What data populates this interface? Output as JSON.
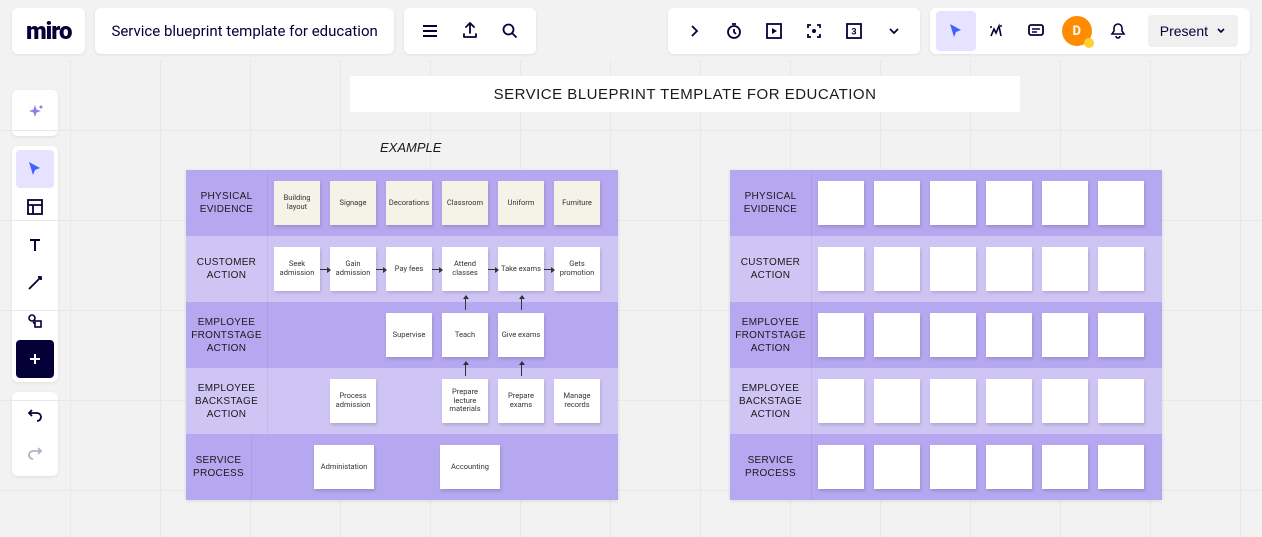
{
  "header": {
    "logo": "miro",
    "board_title": "Service blueprint template for education",
    "present_label": "Present",
    "avatar_initial": "D"
  },
  "canvas": {
    "title_banner": "SERVICE BLUEPRINT TEMPLATE FOR EDUCATION",
    "example_label": "EXAMPLE"
  },
  "blueprint": {
    "row_labels": [
      "PHYSICAL EVIDENCE",
      "CUSTOMER ACTION",
      "EMPLOYEE FRONTSTAGE ACTION",
      "EMPLOYEE BACKSTAGE ACTION",
      "SERVICE PROCESS"
    ],
    "left_rows": [
      {
        "bg": "cream",
        "cells": [
          "Building layout",
          "Signage",
          "Decorations",
          "Classroom",
          "Uniform",
          "Furniture"
        ]
      },
      {
        "bg": "white",
        "arrows_h": true,
        "cells": [
          "Seek admission",
          "Gain admission",
          "Pay fees",
          "Attend classes",
          "Take exams",
          "Gets promotion"
        ]
      },
      {
        "bg": "white",
        "arrows_v": [
          3,
          4
        ],
        "cells": [
          "",
          "",
          "Supervise",
          "Teach",
          "Give exams",
          ""
        ]
      },
      {
        "bg": "white",
        "arrows_v": [
          3,
          4
        ],
        "cells": [
          "",
          "Process admission",
          "",
          "Prepare lecture materials",
          "Prepare exams",
          "Manage records"
        ]
      },
      {
        "bg": "white",
        "wide": true,
        "cells": [
          "",
          "Administation",
          "",
          "Accounting",
          "",
          ""
        ]
      }
    ],
    "colors": {
      "frame_bg": "#b5a7f0",
      "row_alt_bg": "#cfc5f5",
      "note_white": "#ffffff",
      "note_cream": "#f5f2e8"
    }
  }
}
